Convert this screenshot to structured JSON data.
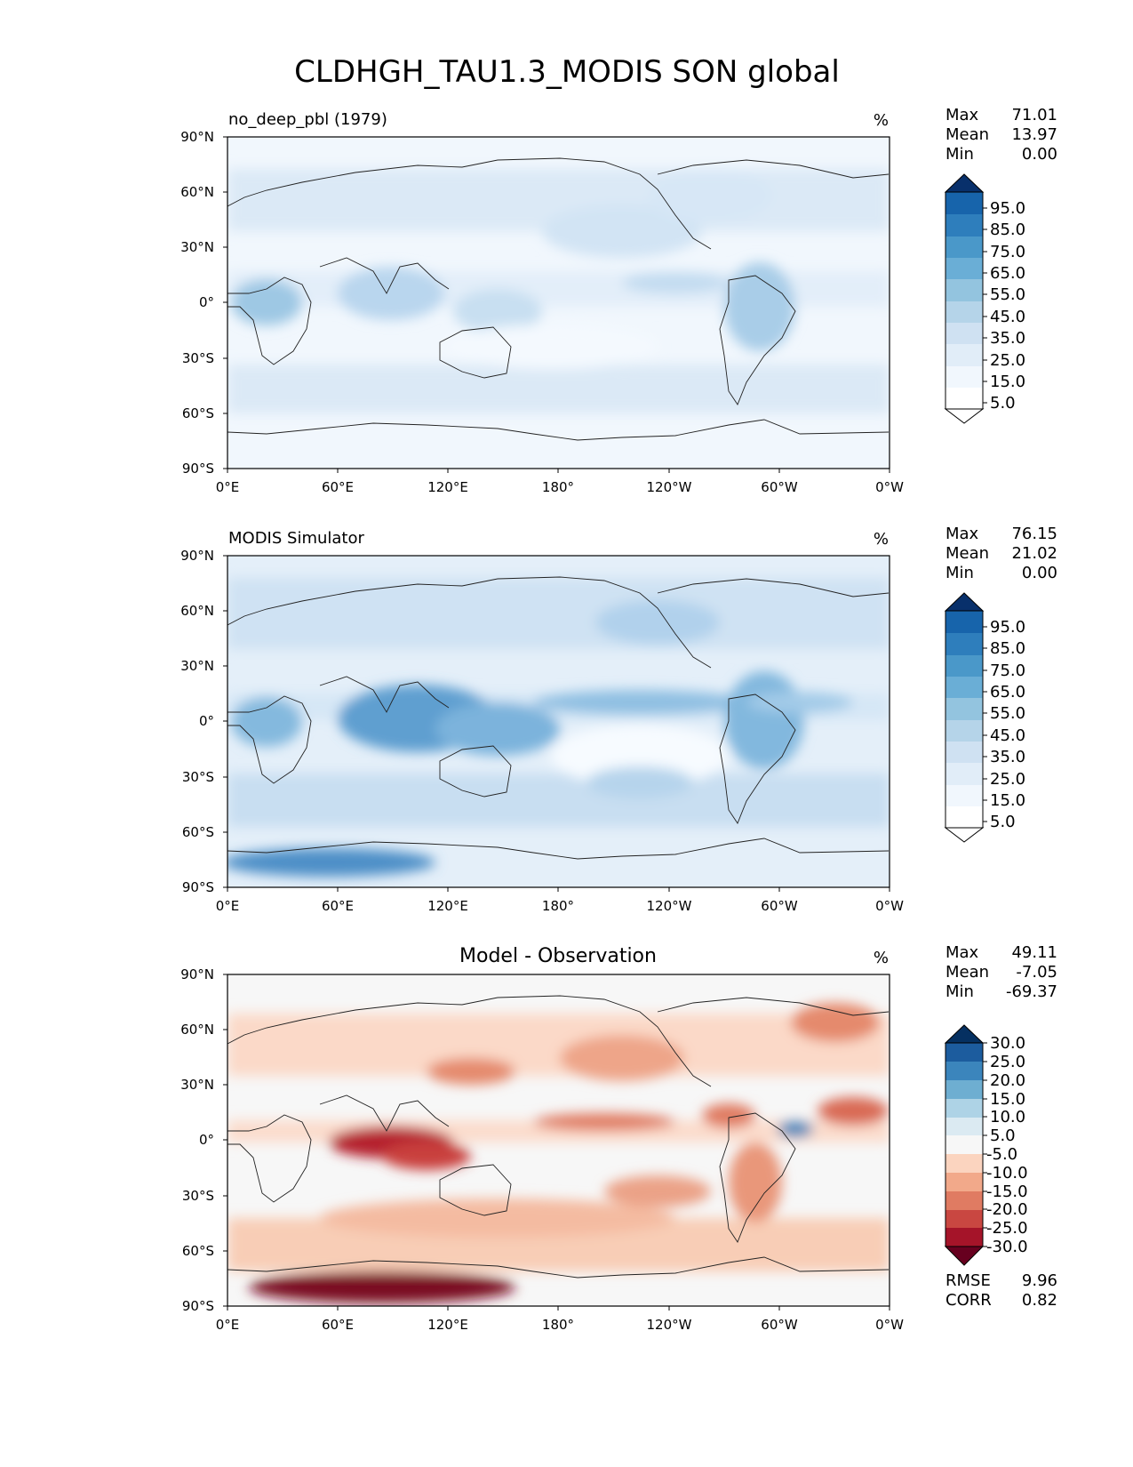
{
  "figure": {
    "title": "CLDHGH_TAU1.3_MODIS SON global"
  },
  "chart_data": [
    {
      "type": "heatmap",
      "title_left": "no_deep_pbl (1979)",
      "title_center": "",
      "units": "%",
      "stats": [
        {
          "label": "Max",
          "value": "71.01"
        },
        {
          "label": "Mean",
          "value": "13.97"
        },
        {
          "label": "Min",
          "value": "0.00"
        }
      ],
      "extra_stats": [],
      "x_ticks": [
        "0°E",
        "60°E",
        "120°E",
        "180°",
        "120°W",
        "60°W",
        "0°W"
      ],
      "y_ticks": [
        "90°N",
        "60°N",
        "30°N",
        "0°",
        "30°S",
        "60°S",
        "90°S"
      ],
      "xlim": [
        0,
        360
      ],
      "ylim": [
        -90,
        90
      ],
      "colormap": "Blues",
      "colorbar_levels": [
        "5.0",
        "15.0",
        "25.0",
        "35.0",
        "45.0",
        "55.0",
        "65.0",
        "75.0",
        "85.0",
        "95.0"
      ],
      "colorbar_colors": [
        "#ffffff",
        "#f1f7fd",
        "#e1edf8",
        "#cfe1f2",
        "#b5d4e9",
        "#93c4df",
        "#6aaed6",
        "#4a98c9",
        "#2e7ebc",
        "#1764ab",
        "#084a91",
        "#08306b"
      ]
    },
    {
      "type": "heatmap",
      "title_left": "MODIS Simulator",
      "title_center": "",
      "units": "%",
      "stats": [
        {
          "label": "Max",
          "value": "76.15"
        },
        {
          "label": "Mean",
          "value": "21.02"
        },
        {
          "label": "Min",
          "value": "0.00"
        }
      ],
      "extra_stats": [],
      "x_ticks": [
        "0°E",
        "60°E",
        "120°E",
        "180°",
        "120°W",
        "60°W",
        "0°W"
      ],
      "y_ticks": [
        "90°N",
        "60°N",
        "30°N",
        "0°",
        "30°S",
        "60°S",
        "90°S"
      ],
      "xlim": [
        0,
        360
      ],
      "ylim": [
        -90,
        90
      ],
      "colormap": "Blues",
      "colorbar_levels": [
        "5.0",
        "15.0",
        "25.0",
        "35.0",
        "45.0",
        "55.0",
        "65.0",
        "75.0",
        "85.0",
        "95.0"
      ],
      "colorbar_colors": [
        "#ffffff",
        "#f1f7fd",
        "#e1edf8",
        "#cfe1f2",
        "#b5d4e9",
        "#93c4df",
        "#6aaed6",
        "#4a98c9",
        "#2e7ebc",
        "#1764ab",
        "#084a91",
        "#08306b"
      ]
    },
    {
      "type": "heatmap",
      "title_left": "",
      "title_center": "Model - Observation",
      "units": "%",
      "stats": [
        {
          "label": "Max",
          "value": "49.11"
        },
        {
          "label": "Mean",
          "value": "-7.05"
        },
        {
          "label": "Min",
          "value": "-69.37"
        }
      ],
      "extra_stats": [
        {
          "label": "RMSE",
          "value": "9.96"
        },
        {
          "label": "CORR",
          "value": "0.82"
        }
      ],
      "x_ticks": [
        "0°E",
        "60°E",
        "120°E",
        "180°",
        "120°W",
        "60°W",
        "0°W"
      ],
      "y_ticks": [
        "90°N",
        "60°N",
        "30°N",
        "0°",
        "30°S",
        "60°S",
        "90°S"
      ],
      "xlim": [
        0,
        360
      ],
      "ylim": [
        -90,
        90
      ],
      "colormap": "RdBu",
      "colorbar_levels": [
        "-30.0",
        "-25.0",
        "-20.0",
        "-15.0",
        "-10.0",
        "-5.0",
        "5.0",
        "10.0",
        "15.0",
        "20.0",
        "25.0",
        "30.0"
      ],
      "colorbar_colors": [
        "#67001f",
        "#a51429",
        "#c94741",
        "#e07b62",
        "#f2a98a",
        "#fbd4bf",
        "#f7f7f7",
        "#dbeaf2",
        "#aed3e6",
        "#6eaed1",
        "#3b85bc",
        "#1c5c9e",
        "#053061"
      ]
    }
  ]
}
